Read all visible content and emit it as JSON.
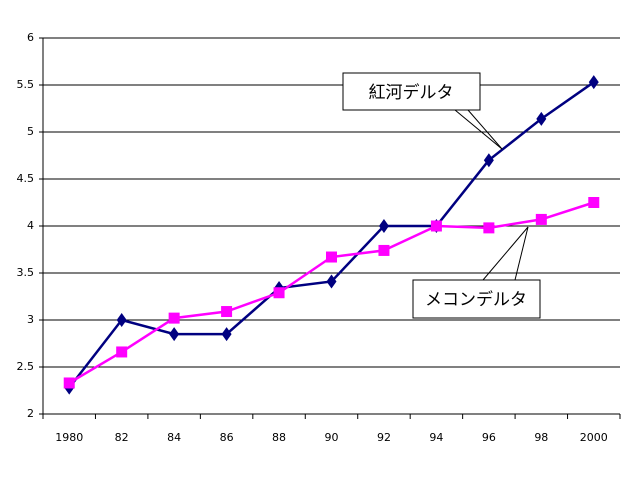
{
  "chart_data": {
    "type": "line",
    "categories": [
      "1980",
      "82",
      "84",
      "86",
      "88",
      "90",
      "92",
      "94",
      "96",
      "98",
      "2000"
    ],
    "series": [
      {
        "name": "紅河デルタ",
        "color": "#000080",
        "marker": "diamond",
        "values": [
          2.28,
          3.0,
          2.85,
          2.85,
          3.34,
          3.41,
          4.0,
          4.0,
          4.7,
          5.14,
          5.53
        ]
      },
      {
        "name": "メコンデルタ",
        "color": "#ff00ff",
        "marker": "square",
        "values": [
          2.33,
          2.66,
          3.02,
          3.09,
          3.29,
          3.67,
          3.74,
          4.0,
          3.98,
          4.07,
          4.25
        ]
      }
    ],
    "ylim": [
      2,
      6
    ],
    "yticks": [
      2,
      2.5,
      3,
      3.5,
      4,
      4.5,
      5,
      5.5,
      6
    ],
    "grid": true
  }
}
